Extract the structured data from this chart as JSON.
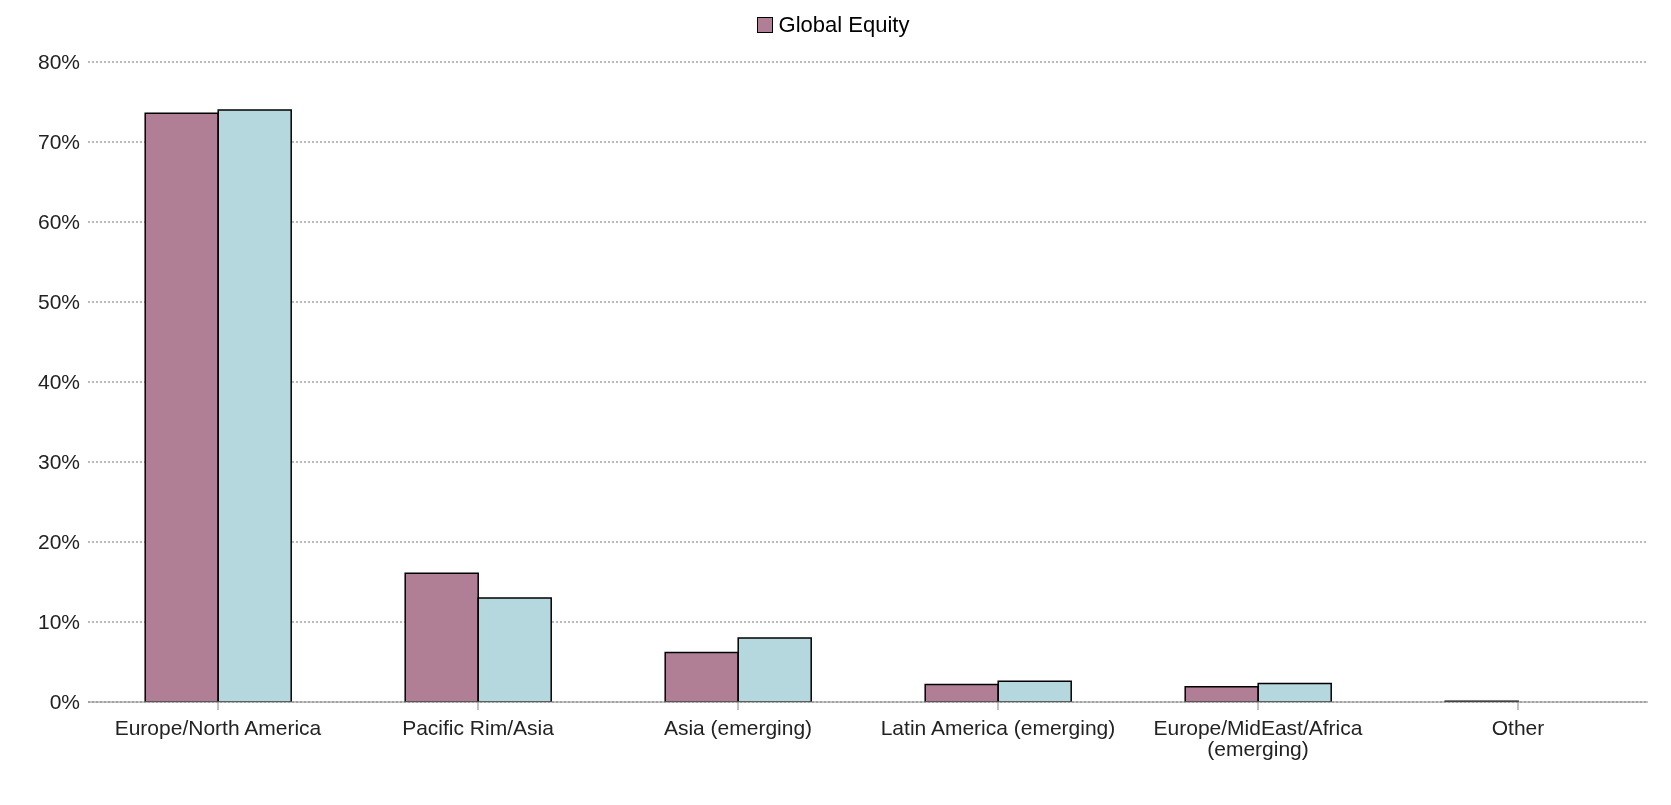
{
  "chart_data": {
    "type": "bar",
    "categories": [
      "Europe/North America",
      "Pacific Rim/Asia",
      "Asia (emerging)",
      "Latin America (emerging)",
      "Europe/MidEast/Africa (emerging)",
      "Other"
    ],
    "series": [
      {
        "name": "Global Equity",
        "color": "#b07f95",
        "values": [
          73.6,
          16.1,
          6.2,
          2.2,
          1.9,
          0.1
        ]
      },
      {
        "color": "#b5d8de",
        "values": [
          74.0,
          13.0,
          8.0,
          2.6,
          2.3,
          0
        ]
      }
    ],
    "ylim": [
      0,
      80
    ],
    "yticks": [
      {
        "value": 0,
        "label": "0%"
      },
      {
        "value": 10,
        "label": "10%"
      },
      {
        "value": 20,
        "label": "20%"
      },
      {
        "value": 30,
        "label": "30%"
      },
      {
        "value": 40,
        "label": "40%"
      },
      {
        "value": 50,
        "label": "50%"
      },
      {
        "value": 60,
        "label": "60%"
      },
      {
        "value": 70,
        "label": "70%"
      },
      {
        "value": 80,
        "label": "80%"
      }
    ],
    "grid": "y",
    "legend": "top"
  }
}
